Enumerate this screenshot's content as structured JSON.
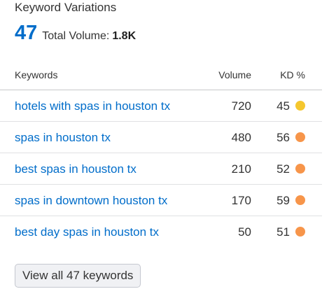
{
  "widget": {
    "title": "Keyword Variations",
    "count": "47",
    "total_volume_label": "Total Volume:",
    "total_volume_value": "1.8K"
  },
  "table": {
    "headers": {
      "keywords": "Keywords",
      "volume": "Volume",
      "kd": "KD %"
    },
    "rows": [
      {
        "keyword": "hotels with spas in houston tx",
        "volume": "720",
        "kd": "45",
        "kd_color": "#f5c72e"
      },
      {
        "keyword": "spas in houston tx",
        "volume": "480",
        "kd": "56",
        "kd_color": "#f7954a"
      },
      {
        "keyword": "best spas in houston tx",
        "volume": "210",
        "kd": "52",
        "kd_color": "#f7954a"
      },
      {
        "keyword": "spas in downtown houston tx",
        "volume": "170",
        "kd": "59",
        "kd_color": "#f7954a"
      },
      {
        "keyword": "best day spas in houston tx",
        "volume": "50",
        "kd": "51",
        "kd_color": "#f7954a"
      }
    ]
  },
  "footer": {
    "view_all_label": "View all 47 keywords"
  },
  "colors": {
    "accent": "#006dca",
    "kd_easy_medium": "#f5c72e",
    "kd_difficult": "#f7954a"
  }
}
